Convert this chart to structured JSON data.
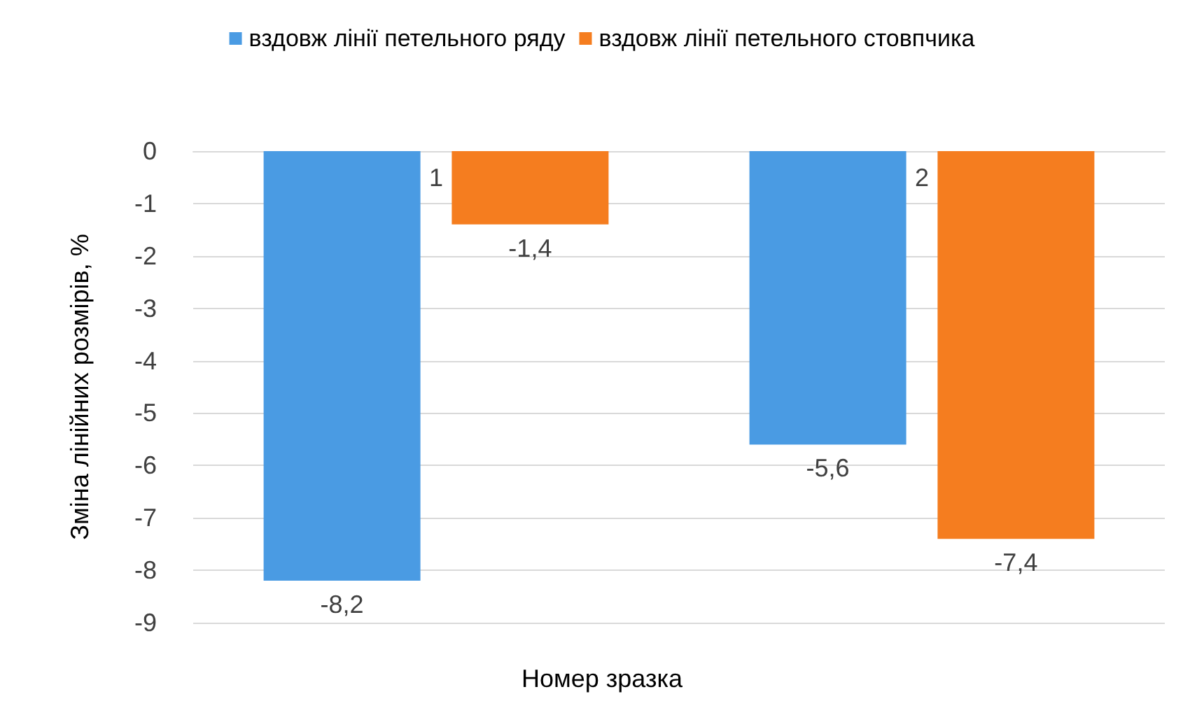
{
  "chart_data": {
    "type": "bar",
    "xlabel": "Номер зразка",
    "ylabel": "Зміна лінійних розмірів, %",
    "categories": [
      "1",
      "2"
    ],
    "series": [
      {
        "name": "вздовж лінії петельного ряду",
        "color": "#4a9be3",
        "values": [
          -8.2,
          -5.6
        ],
        "value_labels": [
          "-8,2",
          "-5,6"
        ]
      },
      {
        "name": "вздовж лінії петельного стовпчика",
        "color": "#f57d1f",
        "values": [
          -1.4,
          -7.4
        ],
        "value_labels": [
          "-1,4",
          "-7,4"
        ]
      }
    ],
    "ylim": [
      -9,
      0
    ],
    "yticks": [
      -9,
      -8,
      -7,
      -6,
      -5,
      -4,
      -3,
      -2,
      -1,
      0
    ],
    "grid": "y",
    "legend": "top"
  }
}
